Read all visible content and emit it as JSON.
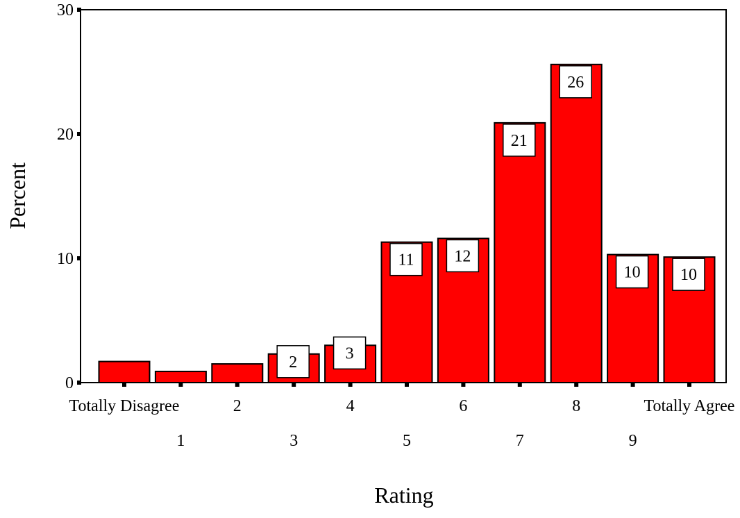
{
  "chart_data": {
    "type": "bar",
    "title": "",
    "xlabel": "Rating",
    "ylabel": "Percent",
    "ylim": [
      0,
      30
    ],
    "yticks": [
      0,
      10,
      20,
      30
    ],
    "grid": false,
    "bar_color": "#ff0000",
    "categories": [
      "Totally Disagree",
      "1",
      "2",
      "3",
      "4",
      "5",
      "6",
      "7",
      "8",
      "9",
      "Totally Agree"
    ],
    "values": [
      1.7,
      0.9,
      1.5,
      2.3,
      3.0,
      11.3,
      11.6,
      20.9,
      25.6,
      10.3,
      10.1
    ],
    "data_labels": [
      "",
      "",
      "",
      "2",
      "3",
      "11",
      "12",
      "21",
      "26",
      "10",
      "10"
    ]
  }
}
